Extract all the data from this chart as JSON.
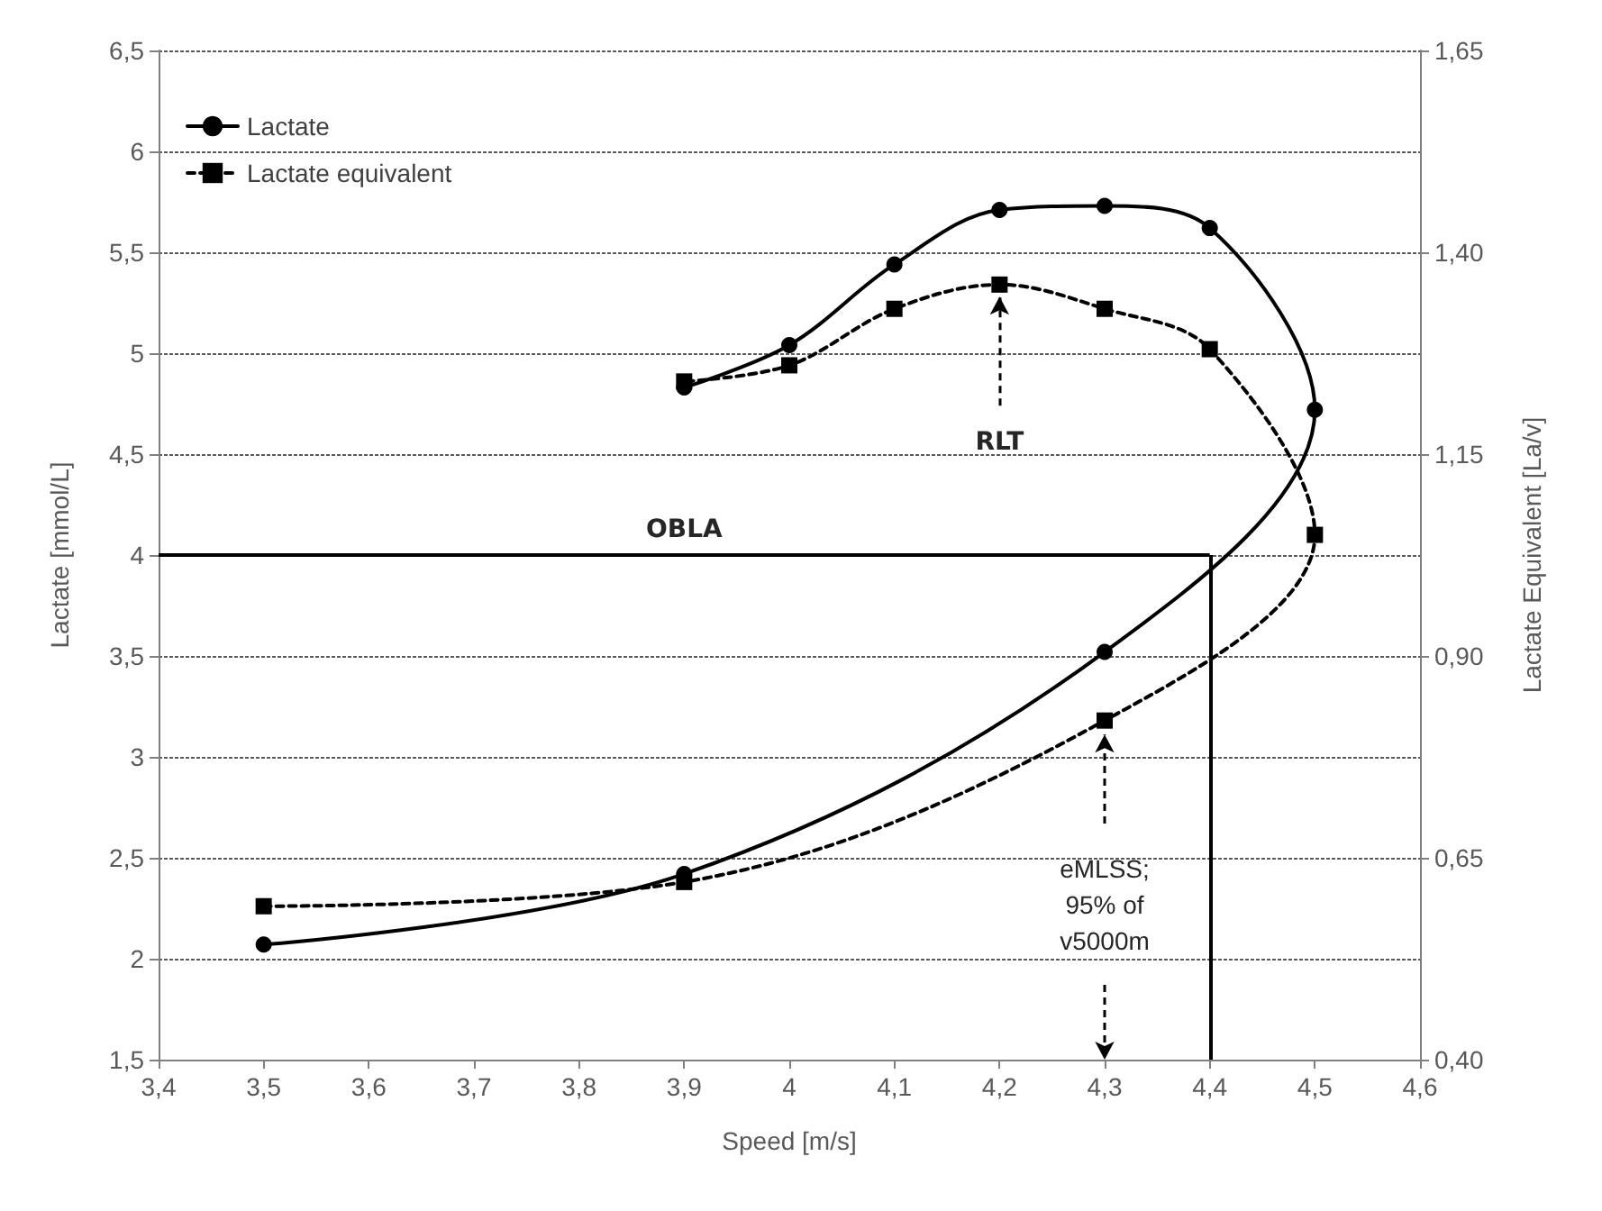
{
  "chart_data": {
    "type": "line",
    "xlabel": "Speed [m/s]",
    "ylabel": "Lactate [mmol/L]",
    "y2label": "Lactate Equivalent [La/v]",
    "xlim": [
      3.4,
      4.6
    ],
    "xticks": [
      {
        "value": 3.4,
        "label": "3,4"
      },
      {
        "value": 3.5,
        "label": "3,5"
      },
      {
        "value": 3.6,
        "label": "3,6"
      },
      {
        "value": 3.7,
        "label": "3,7"
      },
      {
        "value": 3.8,
        "label": "3,8"
      },
      {
        "value": 3.9,
        "label": "3,9"
      },
      4,
      {
        "value": 4.1,
        "label": "4,1"
      },
      {
        "value": 4.2,
        "label": "4,2"
      },
      {
        "value": 4.3,
        "label": "4,3"
      },
      {
        "value": 4.4,
        "label": "4,4"
      },
      {
        "value": 4.5,
        "label": "4,5"
      },
      {
        "value": 4.6,
        "label": "4,6"
      }
    ],
    "ylim": [
      1.5,
      6.5
    ],
    "yticks": [
      {
        "value": 1.5,
        "label": "1,5"
      },
      2,
      {
        "value": 2.5,
        "label": "2,5"
      },
      3,
      {
        "value": 3.5,
        "label": "3,5"
      },
      4,
      {
        "value": 4.5,
        "label": "4,5"
      },
      5,
      {
        "value": 5.5,
        "label": "5,5"
      },
      6,
      {
        "value": 6.5,
        "label": "6,5"
      }
    ],
    "y2lim": [
      0.4,
      1.65
    ],
    "y2ticks": [
      {
        "value": 0.4,
        "label": "0,40"
      },
      {
        "value": 0.65,
        "label": "0,65"
      },
      {
        "value": 0.9,
        "label": "0,90"
      },
      {
        "value": 1.15,
        "label": "1,15"
      },
      {
        "value": 1.4,
        "label": "1,40"
      },
      {
        "value": 1.65,
        "label": "1,65"
      }
    ],
    "series": [
      {
        "name": "Lactate",
        "color": "#000000",
        "marker": "circle",
        "line_style": "solid",
        "x": [
          3.5,
          3.9,
          4.3,
          4.5,
          4.4,
          4.3,
          4.2,
          4.1,
          4.0,
          3.9
        ],
        "values": [
          2.07,
          2.42,
          3.52,
          4.72,
          5.62,
          5.73,
          5.71,
          5.44,
          5.04,
          4.83
        ]
      },
      {
        "name": "Lactate equivalent",
        "color": "#000000",
        "marker": "square",
        "line_style": "dashed",
        "axis": "y2",
        "x": [
          3.5,
          3.9,
          4.3,
          4.5,
          4.4,
          4.3,
          4.2,
          4.1,
          4.0,
          3.9
        ],
        "values": [
          0.59,
          0.62,
          0.82,
          1.05,
          1.28,
          1.33,
          1.36,
          1.33,
          1.26,
          1.24
        ]
      }
    ],
    "ref_lines": [
      {
        "axis": "y",
        "value": 4,
        "label": "OBLA"
      },
      {
        "axis": "x",
        "value": 4.4
      }
    ],
    "annotations": [
      {
        "text": "RLT",
        "x": 4.2,
        "y": 5.34
      },
      {
        "text": "eMLSS;\n95% of\nv5000m",
        "x": 4.3,
        "y": 3.17
      }
    ],
    "grid": "y",
    "legend": "top left"
  }
}
